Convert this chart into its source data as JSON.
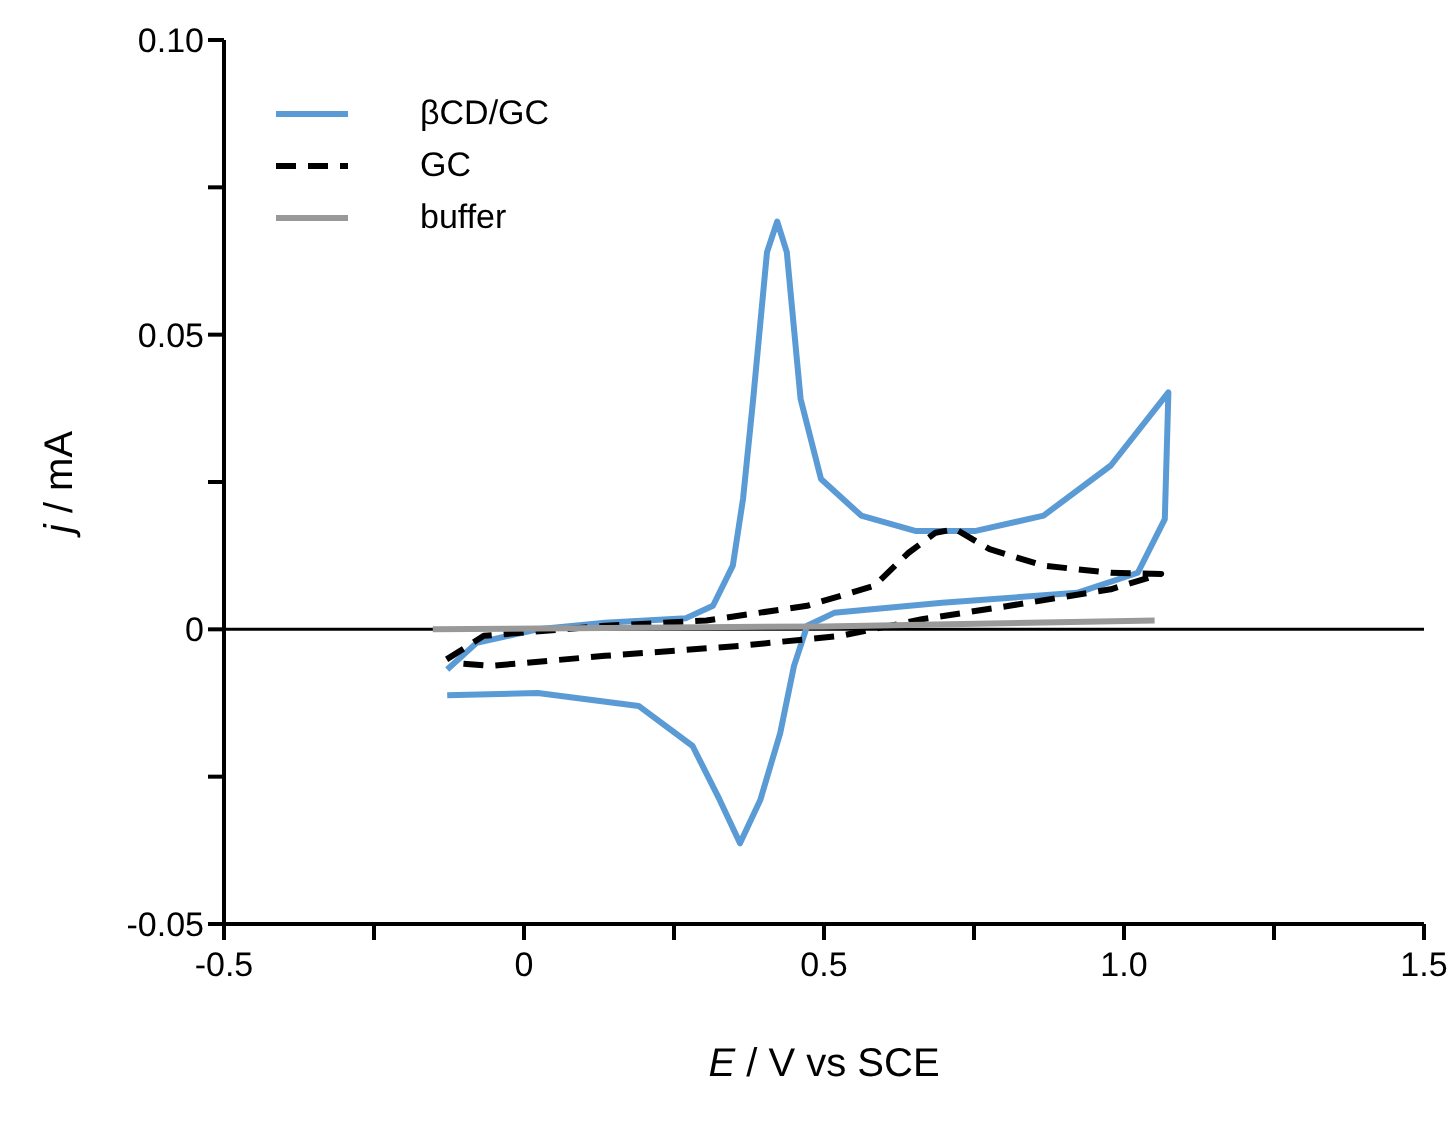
{
  "chart_data": {
    "type": "line",
    "xlabel": "E / V vs SCE",
    "ylabel": "j / mA",
    "xlim": [
      -0.5,
      1.5
    ],
    "xticks": [
      -0.5,
      {
        "value": -0.25,
        "label": null
      },
      0,
      {
        "value": 0.25,
        "label": null
      },
      0.5,
      {
        "value": 0.75,
        "label": null
      },
      {
        "value": 1.0,
        "label": "1.0"
      },
      {
        "value": 1.25,
        "label": null
      },
      1.5
    ],
    "ylim": [
      -0.05,
      0.1
    ],
    "yticks": [
      -0.05,
      {
        "value": -0.025,
        "label": null
      },
      0,
      {
        "value": 0.025,
        "label": null
      },
      0.05,
      {
        "value": 0.075,
        "label": null
      },
      {
        "value": 0.1,
        "label": "0.10"
      }
    ],
    "legend": "top left",
    "grid": false,
    "marker": "none",
    "ref_lines": [
      {
        "axis": "y",
        "value": 0,
        "color": "#000000"
      }
    ],
    "series": [
      {
        "name": "βCD/GC",
        "color": "#5b9bd5",
        "line_style": "solid",
        "x": [
          -0.128,
          -0.079,
          0.023,
          0.135,
          0.27,
          0.315,
          0.348,
          0.365,
          0.382,
          0.405,
          0.422,
          0.438,
          0.461,
          0.495,
          0.562,
          0.652,
          0.753,
          0.866,
          0.978,
          1.074,
          1.068,
          1.023,
          0.922,
          0.697,
          0.517,
          0.472,
          0.45,
          0.427,
          0.394,
          0.36,
          0.326,
          0.281,
          0.191,
          0.023,
          -0.128
        ],
        "values": [
          -0.0068,
          -0.0023,
          0.0,
          0.0011,
          0.0019,
          0.004,
          0.0108,
          0.0221,
          0.0391,
          0.064,
          0.0692,
          0.064,
          0.0391,
          0.0255,
          0.0193,
          0.0167,
          0.0167,
          0.0193,
          0.0278,
          0.0402,
          0.0187,
          0.0096,
          0.0062,
          0.0045,
          0.0028,
          0.0006,
          -0.0062,
          -0.0176,
          -0.0289,
          -0.0363,
          -0.0289,
          -0.0198,
          -0.013,
          -0.0108,
          -0.0112
        ]
      },
      {
        "name": "GC",
        "color": "#000000",
        "line_style": "dashed",
        "x": [
          -0.129,
          -0.067,
          0.135,
          0.304,
          0.472,
          0.584,
          0.641,
          0.686,
          0.719,
          0.776,
          0.866,
          0.978,
          1.062,
          0.978,
          0.809,
          0.663,
          0.528,
          0.36,
          0.135,
          -0.056,
          -0.118
        ],
        "values": [
          -0.0051,
          -0.0011,
          0.0006,
          0.0015,
          0.004,
          0.0074,
          0.013,
          0.0164,
          0.017,
          0.0136,
          0.0108,
          0.0096,
          0.0094,
          0.0068,
          0.004,
          0.0017,
          -0.0011,
          -0.0028,
          -0.0045,
          -0.0062,
          -0.0057
        ]
      },
      {
        "name": "buffer",
        "color": "#999999",
        "line_style": "solid",
        "x": [
          -0.152,
          0.5,
          1.051
        ],
        "values": [
          0.0,
          0.0005,
          0.0015
        ]
      }
    ]
  }
}
